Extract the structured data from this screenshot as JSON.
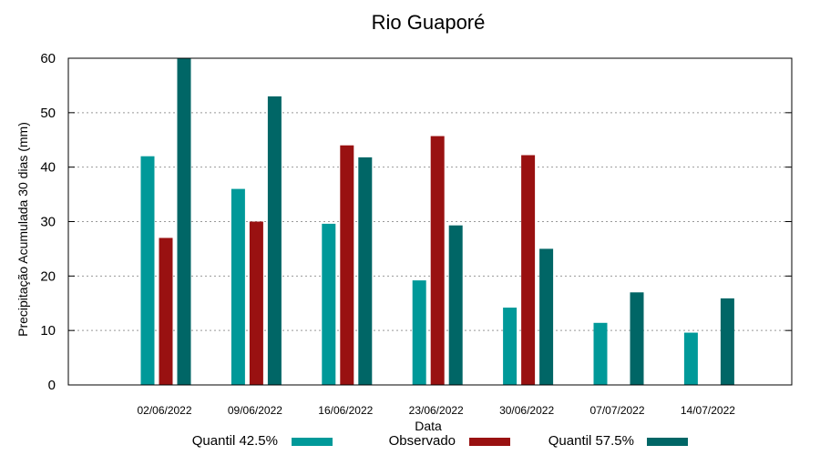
{
  "chart_data": {
    "type": "bar",
    "title": "Rio Guaporé",
    "xlabel": "Data",
    "ylabel": "Precipitação Acumulada 30 dias (mm)",
    "ylim": [
      0,
      60
    ],
    "yticks": [
      0,
      10,
      20,
      30,
      40,
      50,
      60
    ],
    "grid": true,
    "legend_position": "bottom",
    "categories": [
      "02/06/2022",
      "09/06/2022",
      "16/06/2022",
      "23/06/2022",
      "30/06/2022",
      "07/07/2022",
      "14/07/2022"
    ],
    "series": [
      {
        "name": "Quantil 42.5%",
        "color": "#009999",
        "values": [
          42,
          36,
          29.6,
          19.2,
          14.2,
          11.4,
          9.6
        ]
      },
      {
        "name": "Observado",
        "color": "#991111",
        "values": [
          27,
          30,
          44,
          45.7,
          42.2,
          null,
          null
        ]
      },
      {
        "name": "Quantil 57.5%",
        "color": "#006666",
        "values": [
          60,
          53,
          41.8,
          29.3,
          25,
          17,
          15.9
        ]
      }
    ]
  }
}
